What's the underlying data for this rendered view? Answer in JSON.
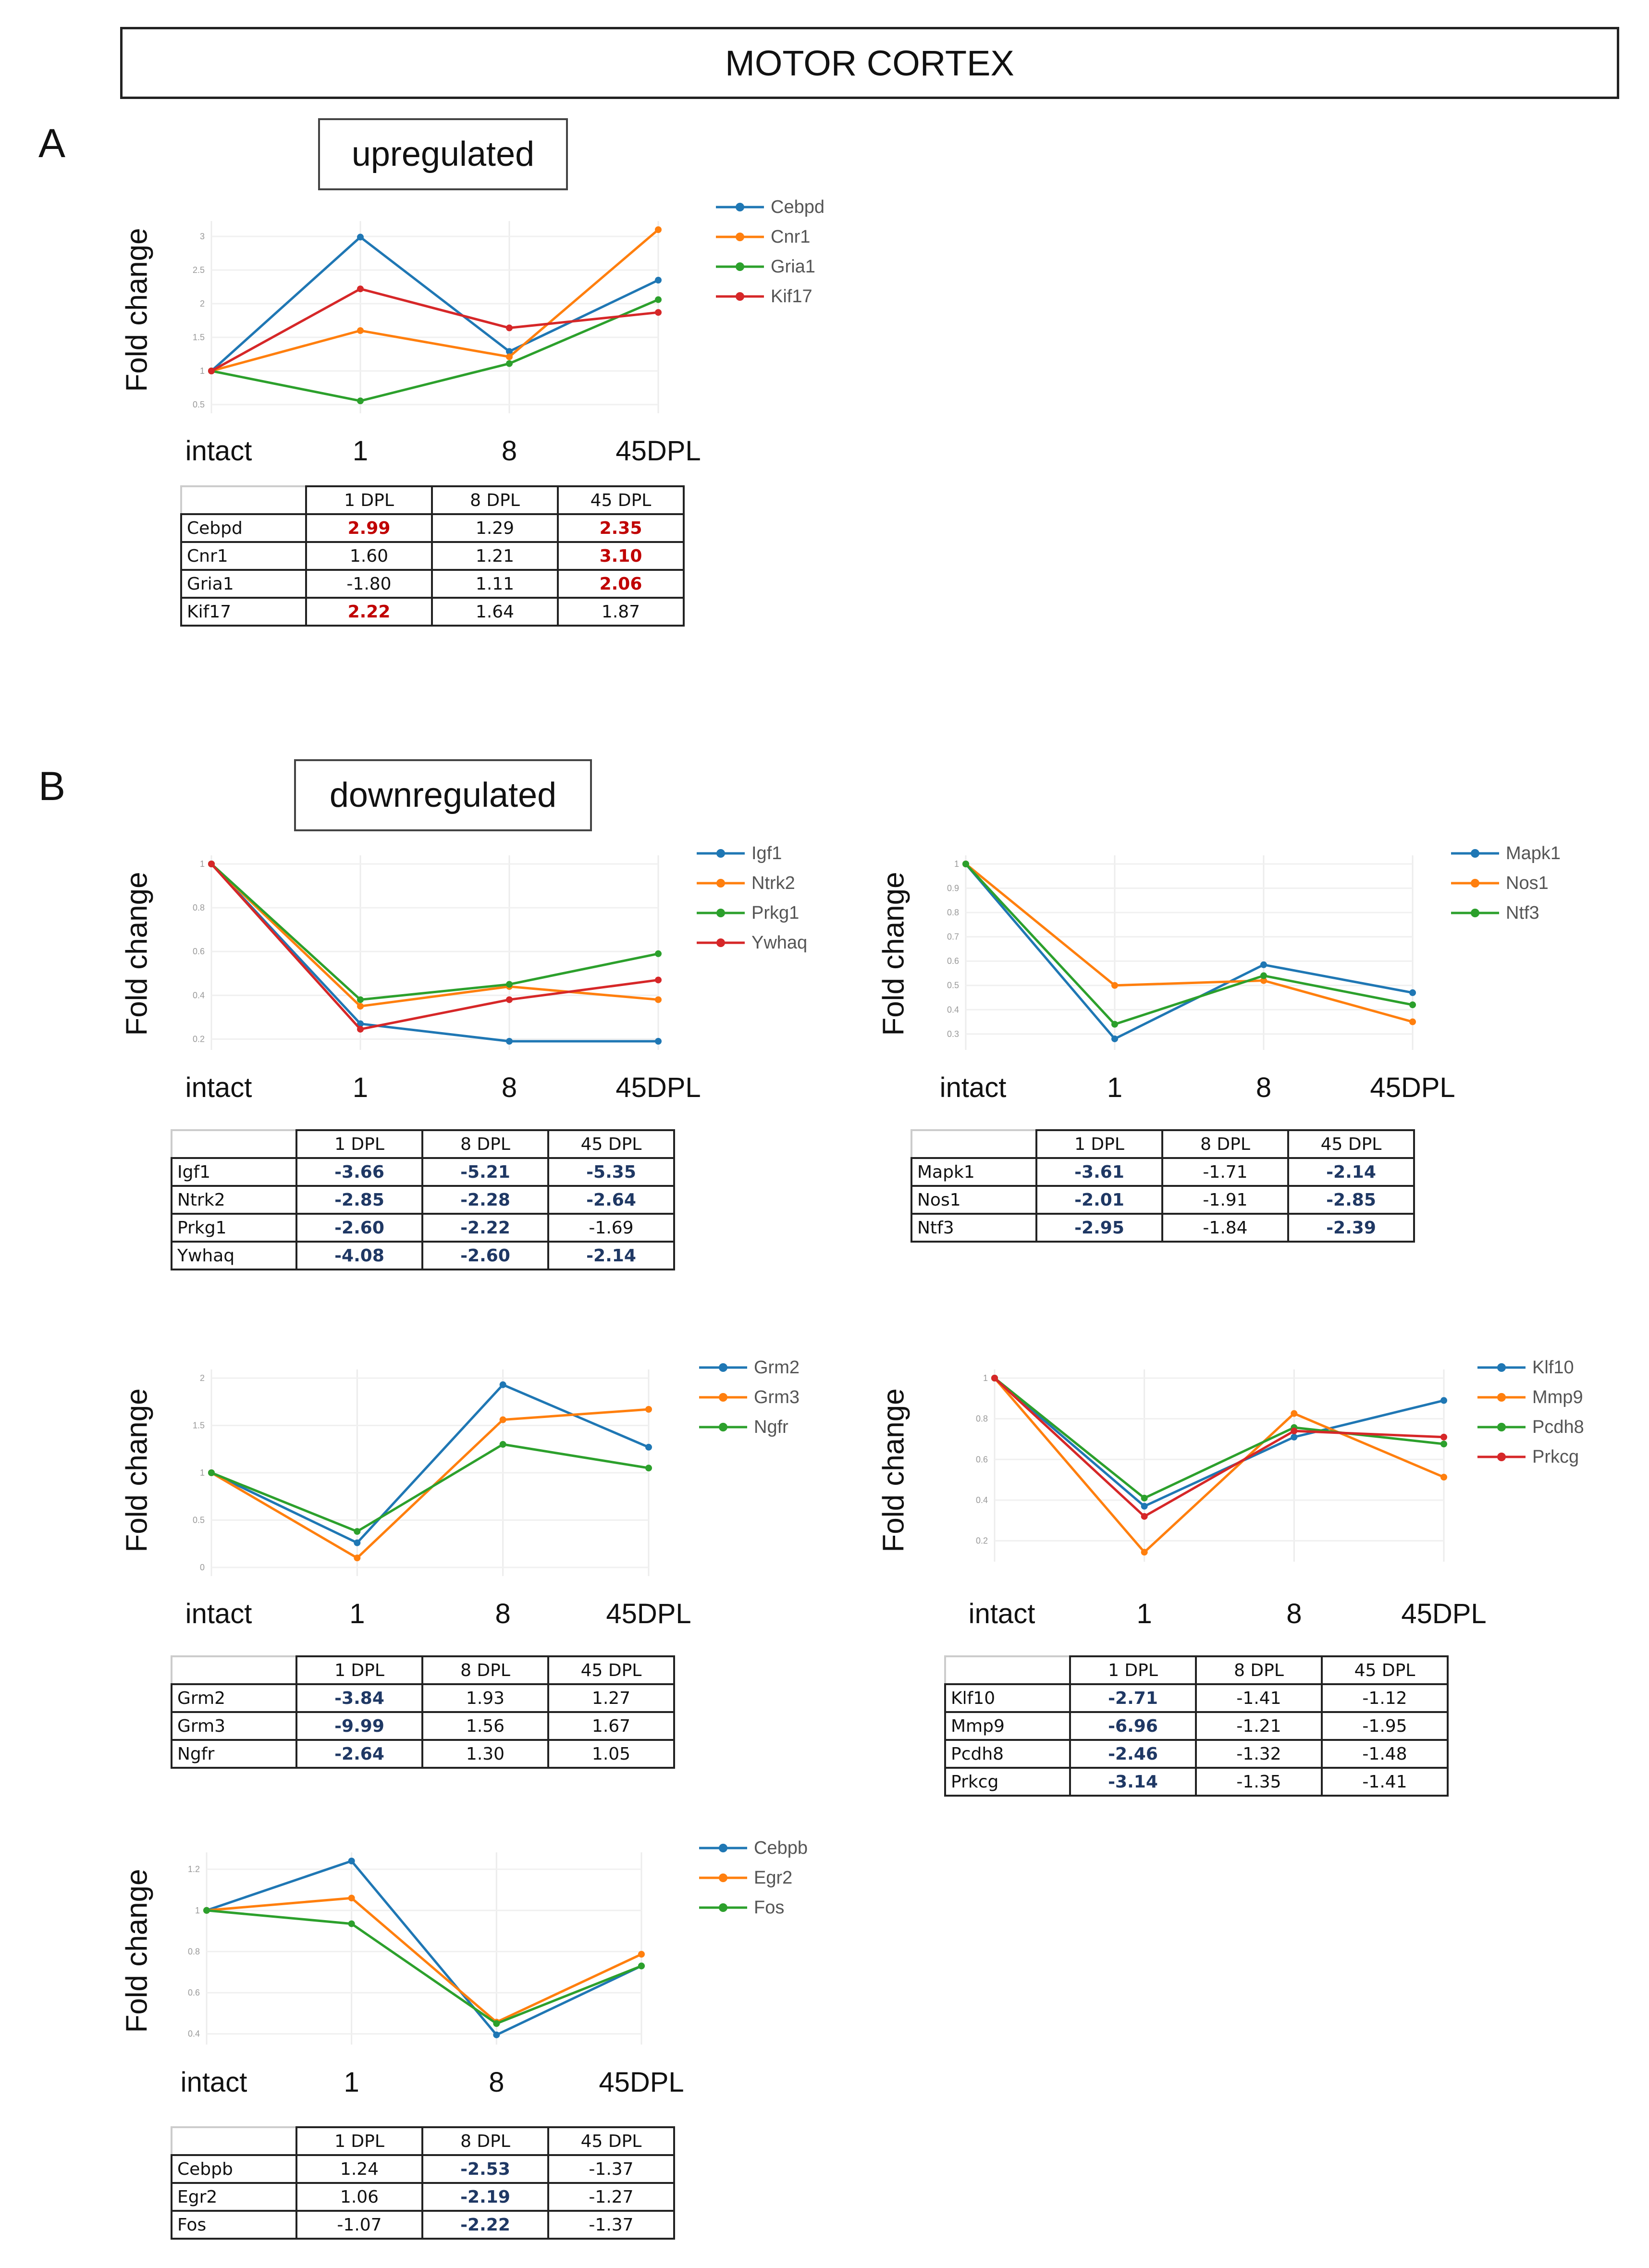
{
  "header": {
    "title": "MOTOR CORTEX"
  },
  "panel_a": {
    "letter": "A",
    "label": "upregulated"
  },
  "panel_b": {
    "letter": "B",
    "label": "downregulated"
  },
  "axis": {
    "ylabel": "Fold change",
    "x_labels": [
      "intact",
      "1",
      "8",
      "45DPL"
    ]
  },
  "table_headers": [
    "1 DPL",
    "8 DPL",
    "45 DPL"
  ],
  "colors": {
    "blue": "#1f77b4",
    "orange": "#ff7f0e",
    "green": "#2ca02c",
    "red": "#d62728"
  },
  "chart_data": [
    {
      "id": "c1",
      "type": "line",
      "ylabel": "Fold change",
      "categories": [
        "intact",
        "1",
        "8",
        "45DPL"
      ],
      "ylim": [
        0.5,
        3.1
      ],
      "yticks": [
        0.5,
        1,
        1.5,
        2,
        2.5,
        3
      ],
      "series": [
        {
          "name": "Cebpd",
          "color": "#1f77b4",
          "values": [
            1,
            2.99,
            1.29,
            2.35
          ]
        },
        {
          "name": "Cnr1",
          "color": "#ff7f0e",
          "values": [
            1,
            1.6,
            1.21,
            3.1
          ]
        },
        {
          "name": "Gria1",
          "color": "#2ca02c",
          "values": [
            1,
            0.555,
            1.11,
            2.06
          ]
        },
        {
          "name": "Kif17",
          "color": "#d62728",
          "values": [
            1,
            2.22,
            1.64,
            1.87
          ]
        }
      ],
      "table": [
        {
          "gene": "Cebpd",
          "values": [
            "2.99",
            "1.29",
            "2.35"
          ],
          "hl": [
            true,
            false,
            true
          ]
        },
        {
          "gene": "Cnr1",
          "values": [
            "1.60",
            "1.21",
            "3.10"
          ],
          "hl": [
            false,
            false,
            true
          ]
        },
        {
          "gene": "Gria1",
          "values": [
            "-1.80",
            "1.11",
            "2.06"
          ],
          "hl": [
            false,
            false,
            true
          ]
        },
        {
          "gene": "Kif17",
          "values": [
            "2.22",
            "1.64",
            "1.87"
          ],
          "hl": [
            true,
            false,
            false
          ]
        }
      ]
    },
    {
      "id": "c2",
      "type": "line",
      "ylabel": "Fold change",
      "categories": [
        "intact",
        "1",
        "8",
        "45DPL"
      ],
      "ylim": [
        0.19,
        1.0
      ],
      "yticks": [
        0.2,
        0.4,
        0.6,
        0.8,
        1
      ],
      "series": [
        {
          "name": "Igf1",
          "color": "#1f77b4",
          "values": [
            1,
            0.27,
            0.19,
            0.19
          ]
        },
        {
          "name": "Ntrk2",
          "color": "#ff7f0e",
          "values": [
            1,
            0.35,
            0.44,
            0.38
          ]
        },
        {
          "name": "Prkg1",
          "color": "#2ca02c",
          "values": [
            1,
            0.38,
            0.45,
            0.59
          ]
        },
        {
          "name": "Ywhaq",
          "color": "#d62728",
          "values": [
            1,
            0.245,
            0.38,
            0.47
          ]
        }
      ],
      "table": [
        {
          "gene": "Igf1",
          "values": [
            "-3.66",
            "-5.21",
            "-5.35"
          ],
          "hl": [
            true,
            true,
            true
          ]
        },
        {
          "gene": "Ntrk2",
          "values": [
            "-2.85",
            "-2.28",
            "-2.64"
          ],
          "hl": [
            true,
            true,
            true
          ]
        },
        {
          "gene": "Prkg1",
          "values": [
            "-2.60",
            "-2.22",
            "-1.69"
          ],
          "hl": [
            true,
            true,
            false
          ]
        },
        {
          "gene": "Ywhaq",
          "values": [
            "-4.08",
            "-2.60",
            "-2.14"
          ],
          "hl": [
            true,
            true,
            true
          ]
        }
      ]
    },
    {
      "id": "c3",
      "type": "line",
      "ylabel": "Fold change",
      "categories": [
        "intact",
        "1",
        "8",
        "45DPL"
      ],
      "ylim": [
        0.27,
        1.0
      ],
      "yticks": [
        0.3,
        0.4,
        0.5,
        0.6,
        0.7,
        0.8,
        0.9,
        1
      ],
      "series": [
        {
          "name": "Mapk1",
          "color": "#1f77b4",
          "values": [
            1,
            0.28,
            0.585,
            0.47
          ]
        },
        {
          "name": "Nos1",
          "color": "#ff7f0e",
          "values": [
            1,
            0.5,
            0.52,
            0.35
          ]
        },
        {
          "name": "Ntf3",
          "color": "#2ca02c",
          "values": [
            1,
            0.34,
            0.54,
            0.42
          ]
        }
      ],
      "table": [
        {
          "gene": "Mapk1",
          "values": [
            "-3.61",
            "-1.71",
            "-2.14"
          ],
          "hl": [
            true,
            false,
            true
          ]
        },
        {
          "gene": "Nos1",
          "values": [
            "-2.01",
            "-1.91",
            "-2.85"
          ],
          "hl": [
            true,
            false,
            true
          ]
        },
        {
          "gene": "Ntf3",
          "values": [
            "-2.95",
            "-1.84",
            "-2.39"
          ],
          "hl": [
            true,
            false,
            true
          ]
        }
      ]
    },
    {
      "id": "c4",
      "type": "line",
      "ylabel": "Fold change",
      "categories": [
        "intact",
        "1",
        "8",
        "45DPL"
      ],
      "ylim": [
        0,
        2.0
      ],
      "yticks": [
        0,
        0.5,
        1,
        1.5,
        2
      ],
      "series": [
        {
          "name": "Grm2",
          "color": "#1f77b4",
          "values": [
            1,
            0.26,
            1.93,
            1.27
          ]
        },
        {
          "name": "Grm3",
          "color": "#ff7f0e",
          "values": [
            1,
            0.1,
            1.56,
            1.67
          ]
        },
        {
          "name": "Ngfr",
          "color": "#2ca02c",
          "values": [
            1,
            0.38,
            1.3,
            1.05
          ]
        }
      ],
      "table": [
        {
          "gene": "Grm2",
          "values": [
            "-3.84",
            "1.93",
            "1.27"
          ],
          "hl": [
            true,
            false,
            false
          ]
        },
        {
          "gene": "Grm3",
          "values": [
            "-9.99",
            "1.56",
            "1.67"
          ],
          "hl": [
            true,
            false,
            false
          ]
        },
        {
          "gene": "Ngfr",
          "values": [
            "-2.64",
            "1.30",
            "1.05"
          ],
          "hl": [
            true,
            false,
            false
          ]
        }
      ]
    },
    {
      "id": "c5",
      "type": "line",
      "ylabel": "Fold change",
      "categories": [
        "intact",
        "1",
        "8",
        "45DPL"
      ],
      "ylim": [
        0.14,
        1.0
      ],
      "yticks": [
        0.2,
        0.4,
        0.6,
        0.8,
        1
      ],
      "series": [
        {
          "name": "Klf10",
          "color": "#1f77b4",
          "values": [
            1,
            0.37,
            0.71,
            0.89
          ]
        },
        {
          "name": "Mmp9",
          "color": "#ff7f0e",
          "values": [
            1,
            0.144,
            0.826,
            0.513
          ]
        },
        {
          "name": "Pcdh8",
          "color": "#2ca02c",
          "values": [
            1,
            0.41,
            0.757,
            0.676
          ]
        },
        {
          "name": "Prkcg",
          "color": "#d62728",
          "values": [
            1,
            0.32,
            0.74,
            0.71
          ]
        }
      ],
      "table": [
        {
          "gene": "Klf10",
          "values": [
            "-2.71",
            "-1.41",
            "-1.12"
          ],
          "hl": [
            true,
            false,
            false
          ]
        },
        {
          "gene": "Mmp9",
          "values": [
            "-6.96",
            "-1.21",
            "-1.95"
          ],
          "hl": [
            true,
            false,
            false
          ]
        },
        {
          "gene": "Pcdh8",
          "values": [
            "-2.46",
            "-1.32",
            "-1.48"
          ],
          "hl": [
            true,
            false,
            false
          ]
        },
        {
          "gene": "Prkcg",
          "values": [
            "-3.14",
            "-1.35",
            "-1.41"
          ],
          "hl": [
            true,
            false,
            false
          ]
        }
      ]
    },
    {
      "id": "c6",
      "type": "line",
      "ylabel": "Fold change",
      "categories": [
        "intact",
        "1",
        "8",
        "45DPL"
      ],
      "ylim": [
        0.39,
        1.24
      ],
      "yticks": [
        0.4,
        0.6,
        0.8,
        1,
        1.2
      ],
      "series": [
        {
          "name": "Cebpb",
          "color": "#1f77b4",
          "values": [
            1,
            1.24,
            0.395,
            0.73
          ]
        },
        {
          "name": "Egr2",
          "color": "#ff7f0e",
          "values": [
            1,
            1.06,
            0.457,
            0.787
          ]
        },
        {
          "name": "Fos",
          "color": "#2ca02c",
          "values": [
            1,
            0.935,
            0.45,
            0.73
          ]
        }
      ],
      "table": [
        {
          "gene": "Cebpb",
          "values": [
            "1.24",
            "-2.53",
            "-1.37"
          ],
          "hl": [
            false,
            true,
            false
          ]
        },
        {
          "gene": "Egr2",
          "values": [
            "1.06",
            "-2.19",
            "-1.27"
          ],
          "hl": [
            false,
            true,
            false
          ]
        },
        {
          "gene": "Fos",
          "values": [
            "-1.07",
            "-2.22",
            "-1.37"
          ],
          "hl": [
            false,
            true,
            false
          ]
        }
      ]
    }
  ]
}
